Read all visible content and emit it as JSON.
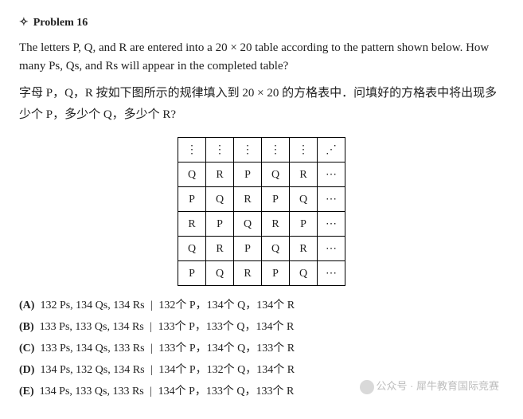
{
  "header": {
    "star": "✧",
    "label": "Problem 16"
  },
  "english": "The letters P, Q, and R are entered into a 20 × 20 table according to the pattern shown below. How many Ps, Qs, and Rs will appear in the completed table?",
  "chinese": "字母 P，Q，R 按如下图所示的规律填入到 20 × 20 的方格表中．问填好的方格表中将出现多少个 P，多少个 Q，多少个 R?",
  "table": {
    "vdots": "⋮",
    "ddots": "⋰",
    "cdots": "⋯",
    "rows": [
      [
        "Q",
        "R",
        "P",
        "Q",
        "R"
      ],
      [
        "P",
        "Q",
        "R",
        "P",
        "Q"
      ],
      [
        "R",
        "P",
        "Q",
        "R",
        "P"
      ],
      [
        "Q",
        "R",
        "P",
        "Q",
        "R"
      ],
      [
        "P",
        "Q",
        "R",
        "P",
        "Q"
      ]
    ]
  },
  "choices": [
    {
      "key": "(A)",
      "en": "132 Ps, 134 Qs, 134 Rs",
      "zh": "132个 P，134个 Q，134个 R"
    },
    {
      "key": "(B)",
      "en": "133 Ps, 133 Qs, 134 Rs",
      "zh": "133个 P，133个 Q，134个 R"
    },
    {
      "key": "(C)",
      "en": "133 Ps, 134 Qs, 133 Rs",
      "zh": "133个 P，134个 Q，133个 R"
    },
    {
      "key": "(D)",
      "en": "134 Ps, 132 Qs, 134 Rs",
      "zh": "134个 P，132个 Q，134个 R"
    },
    {
      "key": "(E)",
      "en": "134 Ps, 133 Qs, 133 Rs",
      "zh": "134个 P，133个 Q，133个 R"
    }
  ],
  "watermark": {
    "text1": "公众号 · 犀牛教育国际竞赛"
  }
}
